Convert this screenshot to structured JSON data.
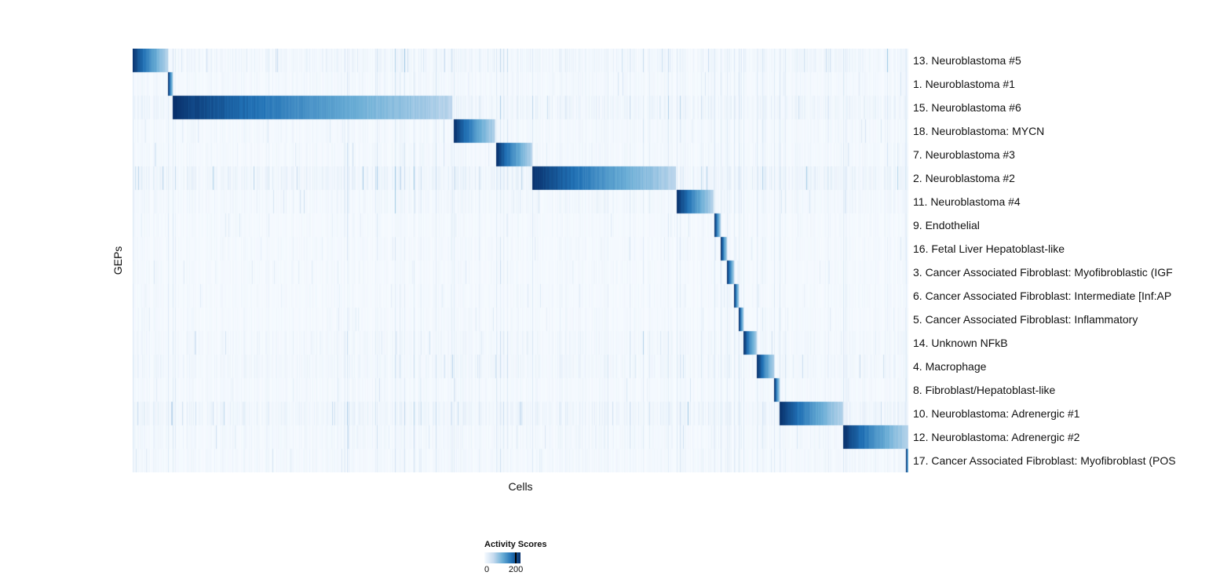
{
  "chart_data": {
    "type": "heatmap",
    "title": "",
    "xlabel": "Cells",
    "ylabel": "GEPs",
    "legend": {
      "title": "Activity Scores",
      "tick_min": "0",
      "tick_max": "200",
      "tick_max_position": 0.87
    },
    "value_range": [
      0,
      230
    ],
    "colormap_name": "Blues",
    "colormap_stops": [
      "#f7fbff",
      "#c6dbef",
      "#6baed6",
      "#2171b5",
      "#08306b"
    ],
    "layout": {
      "grid": false,
      "legend_position": "bottom-left",
      "cells_sorted_by_max_program": true
    },
    "rows": [
      {
        "label": "13. Neuroblastoma #5",
        "block_start": 0.0,
        "block_end": 0.046,
        "streaks": 1.3
      },
      {
        "label": "1. Neuroblastoma #1",
        "block_start": 0.046,
        "block_end": 0.052,
        "streaks": 0.9
      },
      {
        "label": "15. Neuroblastoma #6",
        "block_start": 0.052,
        "block_end": 0.412,
        "streaks": 1.5
      },
      {
        "label": "18. Neuroblastoma: MYCN",
        "block_start": 0.414,
        "block_end": 0.468,
        "streaks": 0.9
      },
      {
        "label": "7. Neuroblastoma #3",
        "block_start": 0.469,
        "block_end": 0.515,
        "streaks": 0.9
      },
      {
        "label": "2. Neuroblastoma #2",
        "block_start": 0.515,
        "block_end": 0.7,
        "streaks": 1.8
      },
      {
        "label": "11. Neuroblastoma #4",
        "block_start": 0.701,
        "block_end": 0.749,
        "streaks": 1.0
      },
      {
        "label": "9. Endothelial",
        "block_start": 0.75,
        "block_end": 0.758,
        "streaks": 0.7
      },
      {
        "label": "16. Fetal Liver Hepatoblast-like",
        "block_start": 0.758,
        "block_end": 0.766,
        "streaks": 0.7
      },
      {
        "label": "3. Cancer Associated Fibroblast: Myofibroblastic (IGF",
        "block_start": 0.766,
        "block_end": 0.775,
        "streaks": 0.7
      },
      {
        "label": "6. Cancer Associated Fibroblast: Intermediate [Inf:AP",
        "block_start": 0.775,
        "block_end": 0.781,
        "streaks": 0.7
      },
      {
        "label": "5. Cancer Associated Fibroblast: Inflammatory",
        "block_start": 0.781,
        "block_end": 0.787,
        "streaks": 0.7
      },
      {
        "label": "14. Unknown NFkB",
        "block_start": 0.787,
        "block_end": 0.805,
        "streaks": 1.0
      },
      {
        "label": "4. Macrophage",
        "block_start": 0.805,
        "block_end": 0.827,
        "streaks": 1.2
      },
      {
        "label": "8. Fibroblast/Hepatoblast-like",
        "block_start": 0.827,
        "block_end": 0.834,
        "streaks": 0.8
      },
      {
        "label": "10. Neuroblastoma: Adrenergic #1",
        "block_start": 0.834,
        "block_end": 0.916,
        "streaks": 1.6
      },
      {
        "label": "12. Neuroblastoma: Adrenergic #2",
        "block_start": 0.916,
        "block_end": 1.0,
        "streaks": 1.0
      },
      {
        "label": "17. Cancer Associated Fibroblast: Myofibroblast (POS",
        "block_start": 0.997,
        "block_end": 1.0,
        "streaks": 0.9
      }
    ]
  }
}
